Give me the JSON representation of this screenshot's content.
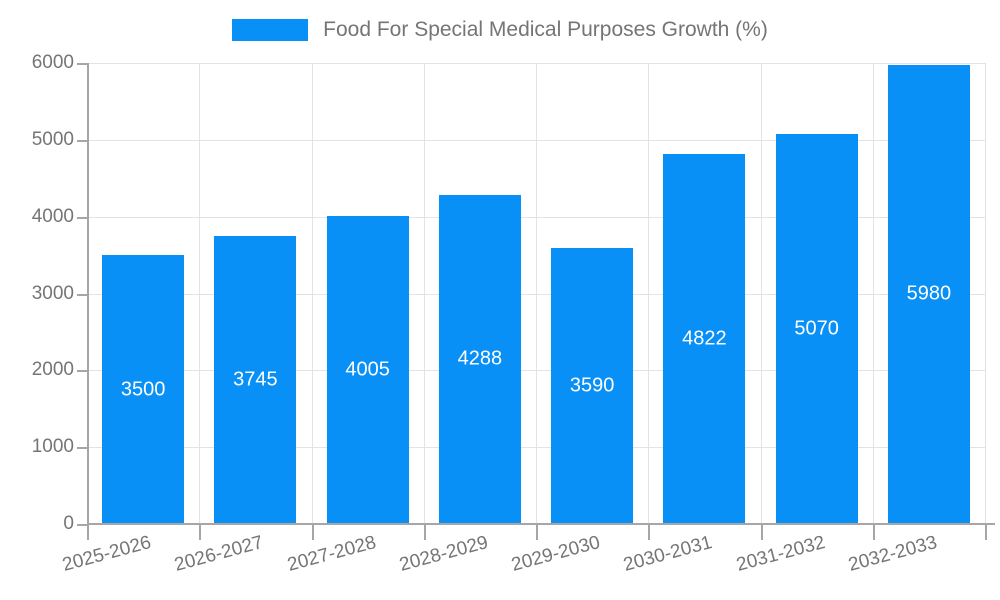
{
  "legend": {
    "label": "Food For Special Medical Purposes Growth (%)"
  },
  "chart_data": {
    "type": "bar",
    "title": "Food For Special Medical Purposes Growth (%)",
    "categories": [
      "2025-2026",
      "2026-2027",
      "2027-2028",
      "2028-2029",
      "2029-2030",
      "2030-2031",
      "2031-2032",
      "2032-2033"
    ],
    "values": [
      3500,
      3745,
      4005,
      4288,
      3590,
      4822,
      5070,
      5980
    ],
    "xlabel": "",
    "ylabel": "",
    "ylim": [
      0,
      6000
    ],
    "yticks": [
      0,
      1000,
      2000,
      3000,
      4000,
      5000,
      6000
    ],
    "grid": true,
    "legend_position": "top",
    "value_labels": "inside-center",
    "colors": {
      "bar": "#0890f7",
      "value_label": "#ffffff",
      "grid": "#e3e3e3",
      "axis": "#a6a6a6",
      "tick_text": "#757575",
      "background": "#ffffff"
    }
  }
}
